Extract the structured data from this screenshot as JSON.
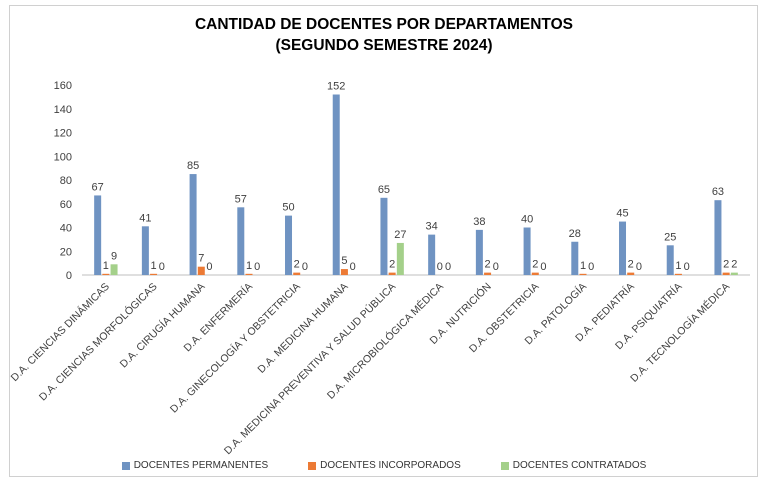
{
  "chart_data": {
    "type": "bar",
    "title": "CANTIDAD DE DOCENTES POR DEPARTAMENTOS",
    "subtitle": "(SEGUNDO SEMESTRE 2024)",
    "categories": [
      "D.A. CIENCIAS DINÁMICAS",
      "D.A. CIENCIAS MORFOLÓGICAS",
      "D.A. CIRUGÍA HUMANA",
      "D.A. ENFERMERÍA",
      "D.A. GINECOLOGÍA Y OBSTETRICIA",
      "D.A. MEDICINA HUMANA",
      "D.A. MEDICINA PREVENTIVA Y SALUD PÚBLICA",
      "D.A. MICROBIOLÓGICA MÉDICA",
      "D.A. NUTRICIÓN",
      "D.A. OBSTETRICIA",
      "D.A. PATOLOGÍA",
      "D.A. PEDIATRÍA",
      "D.A. PSIQUIATRÍA",
      "D.A. TECNOLOGÍA MÉDICA"
    ],
    "series": [
      {
        "name": "DOCENTES PERMANENTES",
        "color": "#6f93c2",
        "values": [
          67,
          41,
          85,
          57,
          50,
          152,
          65,
          34,
          38,
          40,
          28,
          45,
          25,
          63
        ]
      },
      {
        "name": "DOCENTES INCORPORADOS",
        "color": "#ec7a35",
        "values": [
          1,
          1,
          7,
          1,
          2,
          5,
          2,
          0,
          2,
          2,
          1,
          2,
          1,
          2
        ]
      },
      {
        "name": "DOCENTES CONTRATADOS",
        "color": "#a4d08a",
        "values": [
          9,
          0,
          0,
          0,
          0,
          0,
          27,
          0,
          0,
          0,
          0,
          0,
          0,
          2
        ]
      }
    ],
    "ylim": [
      0,
      160
    ],
    "yticks": [
      0,
      20,
      40,
      60,
      80,
      100,
      120,
      140,
      160
    ],
    "grid": false,
    "legend_position": "bottom"
  }
}
